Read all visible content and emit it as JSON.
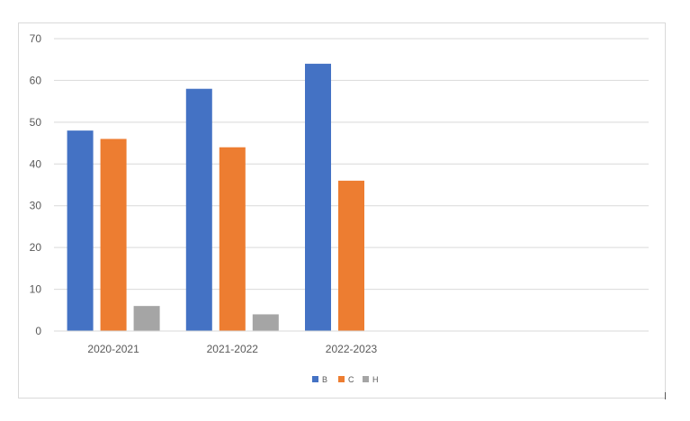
{
  "chart_data": {
    "type": "bar",
    "title": "",
    "xlabel": "",
    "ylabel": "",
    "categories": [
      "2020-2021",
      "2021-2022",
      "2022-2023",
      "",
      ""
    ],
    "series": [
      {
        "name": "B",
        "color": "#4472c4",
        "values": [
          48,
          58,
          64,
          null,
          null
        ]
      },
      {
        "name": "C",
        "color": "#ed7d31",
        "values": [
          46,
          44,
          36,
          null,
          null
        ]
      },
      {
        "name": "H",
        "color": "#a5a5a5",
        "values": [
          6,
          4,
          null,
          null,
          null
        ]
      }
    ],
    "ylim": [
      0,
      70
    ],
    "yticks": [
      0,
      10,
      20,
      30,
      40,
      50,
      60,
      70
    ],
    "grid": true,
    "legend_position": "bottom"
  }
}
